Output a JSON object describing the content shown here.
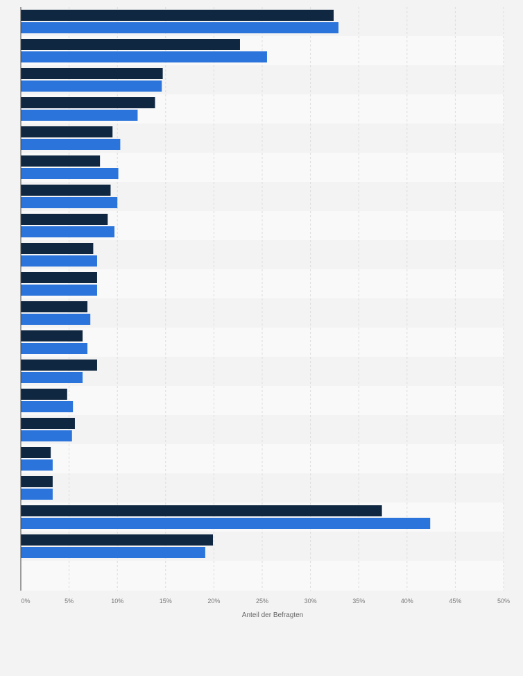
{
  "chart_data": {
    "type": "bar",
    "orientation": "horizontal",
    "categories": [
      "",
      "",
      "",
      "",
      "",
      "",
      "",
      "",
      "",
      "",
      "",
      "",
      "",
      "",
      "",
      "",
      "",
      "",
      ""
    ],
    "series": [
      {
        "color": "#0f2741",
        "values": [
          32.4,
          22.7,
          14.7,
          13.9,
          9.5,
          8.2,
          9.3,
          9.0,
          7.5,
          7.9,
          6.9,
          6.4,
          7.9,
          4.8,
          5.6,
          3.1,
          3.3,
          37.4,
          19.9
        ]
      },
      {
        "color": "#2a74db",
        "values": [
          32.9,
          25.5,
          14.6,
          12.1,
          10.3,
          10.1,
          10.0,
          9.7,
          7.9,
          7.9,
          7.2,
          6.9,
          6.4,
          5.4,
          5.3,
          3.3,
          3.3,
          42.4,
          19.1
        ]
      }
    ],
    "xlabel": "Anteil der Befragten",
    "xlim": [
      0,
      50
    ],
    "xticks": [
      "0%",
      "5%",
      "10%",
      "15%",
      "20%",
      "25%",
      "30%",
      "35%",
      "40%",
      "45%",
      "50%"
    ],
    "grid": true,
    "legend": "none"
  }
}
